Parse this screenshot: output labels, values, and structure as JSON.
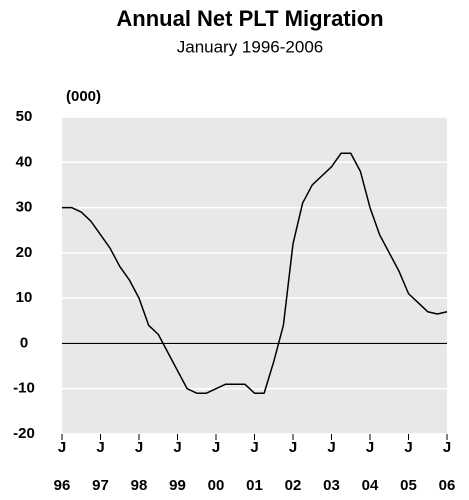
{
  "chart_data": {
    "type": "line",
    "title": "Annual Net PLT Migration",
    "subtitle": "January 1996-2006",
    "y_unit_label": "(000)",
    "categories": [
      "96",
      null,
      null,
      null,
      "97",
      null,
      null,
      null,
      "98",
      null,
      null,
      null,
      "99",
      null,
      null,
      null,
      "00",
      null,
      null,
      null,
      "01",
      null,
      null,
      null,
      "02",
      null,
      null,
      null,
      "03",
      null,
      null,
      null,
      "04",
      null,
      null,
      null,
      "05",
      null,
      null,
      null,
      "06"
    ],
    "x_month_labels": [
      "J",
      "J",
      "J",
      "J",
      "J",
      "J",
      "J",
      "J",
      "J",
      "J",
      "J"
    ],
    "series": [
      {
        "name": "Annual Net PLT Migration",
        "color": "#000000",
        "values": [
          30,
          30,
          29,
          27,
          24,
          21,
          17,
          14,
          10,
          4,
          2,
          -2,
          -6,
          -10,
          -11,
          -11,
          -10,
          -9,
          -9,
          -9,
          -11,
          -11,
          -4,
          4,
          22,
          31,
          35,
          37,
          39,
          42,
          42,
          38,
          30,
          24,
          20,
          16,
          11,
          9,
          7,
          6.5,
          7
        ]
      }
    ],
    "ylim": [
      -20,
      50
    ],
    "yticks": [
      50,
      40,
      30,
      20,
      10,
      0,
      -10,
      -20
    ],
    "grid": true,
    "zero_line": true,
    "background": "#e8e8e8"
  }
}
